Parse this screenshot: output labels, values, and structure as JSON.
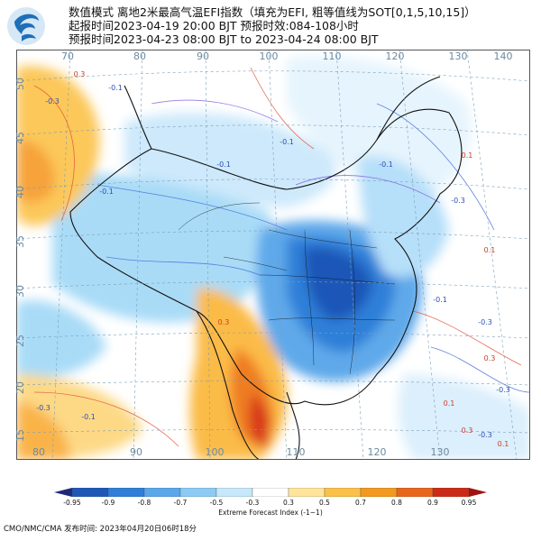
{
  "header": {
    "line1": "数值模式 离地2米最高气温EFI指数（填充为EFI, 粗等值线为SOT[0,1,5,10,15]）",
    "line2": "起报时间2023-04-19 20:00 BJT 预报时效:084-108小时",
    "line3": "预报时间2023-04-23 08:00 BJT to 2023-04-24 08:00 BJT"
  },
  "map": {
    "lon_top": [
      "70",
      "80",
      "90",
      "100",
      "110",
      "120",
      "130",
      "140"
    ],
    "lon_bottom": [
      "80",
      "90",
      "100",
      "110",
      "120",
      "130"
    ],
    "lat_left": [
      "50",
      "45",
      "40",
      "35",
      "30",
      "25",
      "20",
      "15"
    ],
    "contour_labels": [
      "-0.3",
      "-0.1",
      "0.3",
      "-0.1",
      "-0.1",
      "0.1",
      "-0.3",
      "-0.1",
      "-0.1",
      "0.1",
      "-0.1",
      "-0.3",
      "0.3",
      "-0.3",
      "0.1",
      "0.3",
      "-0.3",
      "-0.1",
      "0.3",
      "-0.3",
      "0.1",
      "0.3"
    ]
  },
  "colorbar": {
    "labels": [
      "-0.95",
      "-0.9",
      "-0.8",
      "-0.7",
      "-0.5",
      "-0.3",
      "0.3",
      "0.5",
      "0.7",
      "0.8",
      "0.9",
      "0.95"
    ],
    "colors": [
      "#1e2a78",
      "#1f57b7",
      "#2f7fd8",
      "#5aa7ea",
      "#8ccbf3",
      "#c7e8fb",
      "#ffffff",
      "#ffe49a",
      "#fbc048",
      "#f39a1e",
      "#e8661a",
      "#cc2a18",
      "#a01212"
    ],
    "title": "Extreme Forecast Index (-1~1)"
  },
  "footer": "CMO/NMC/CMA 发布时间: 2023年04月20日06时18分"
}
